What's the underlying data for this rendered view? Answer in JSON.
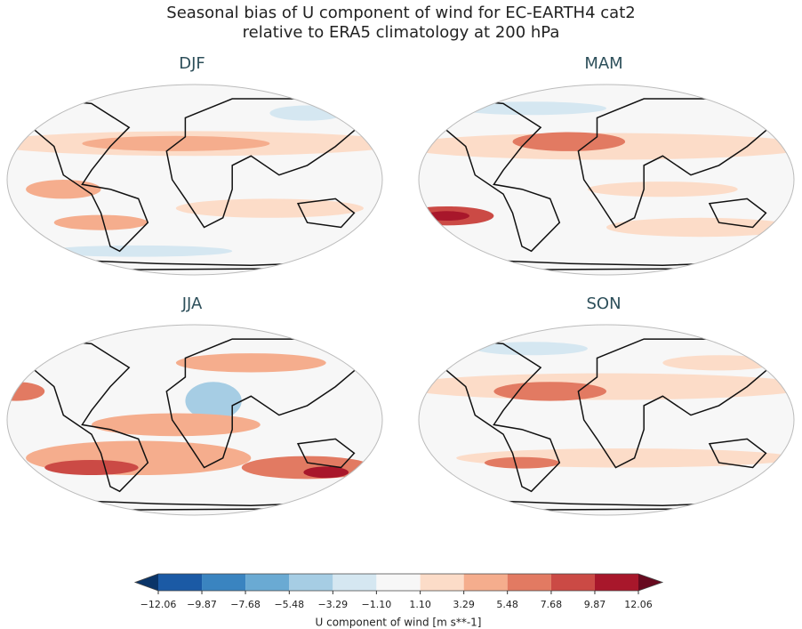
{
  "title_lines": [
    "Seasonal bias of U component of wind for EC-EARTH4 cat2",
    "relative to ERA5 climatology at 200 hPa"
  ],
  "panels": [
    {
      "title": "DJF"
    },
    {
      "title": "MAM"
    },
    {
      "title": "JJA"
    },
    {
      "title": "SON"
    }
  ],
  "colorbar": {
    "label": "U component of wind [m s**-1]",
    "ticks": [
      {
        "value": -12.06,
        "label": "−12.06"
      },
      {
        "value": -9.87,
        "label": "−9.87"
      },
      {
        "value": -7.68,
        "label": "−7.68"
      },
      {
        "value": -5.48,
        "label": "−5.48"
      },
      {
        "value": -3.29,
        "label": "−3.29"
      },
      {
        "value": -1.1,
        "label": "−1.10"
      },
      {
        "value": 1.1,
        "label": "1.10"
      },
      3.29,
      5.48,
      7.68,
      9.87,
      12.06
    ],
    "colors": [
      "#1b5aa5",
      "#3a84c0",
      "#6aaad3",
      "#a6cde4",
      "#d5e7f1",
      "#f7f7f7",
      "#fcdcc8",
      "#f5ad8d",
      "#e27a62",
      "#cb4a45",
      "#a8172b"
    ],
    "extend_colors": [
      "#0a3468",
      "#670a1f"
    ]
  }
}
